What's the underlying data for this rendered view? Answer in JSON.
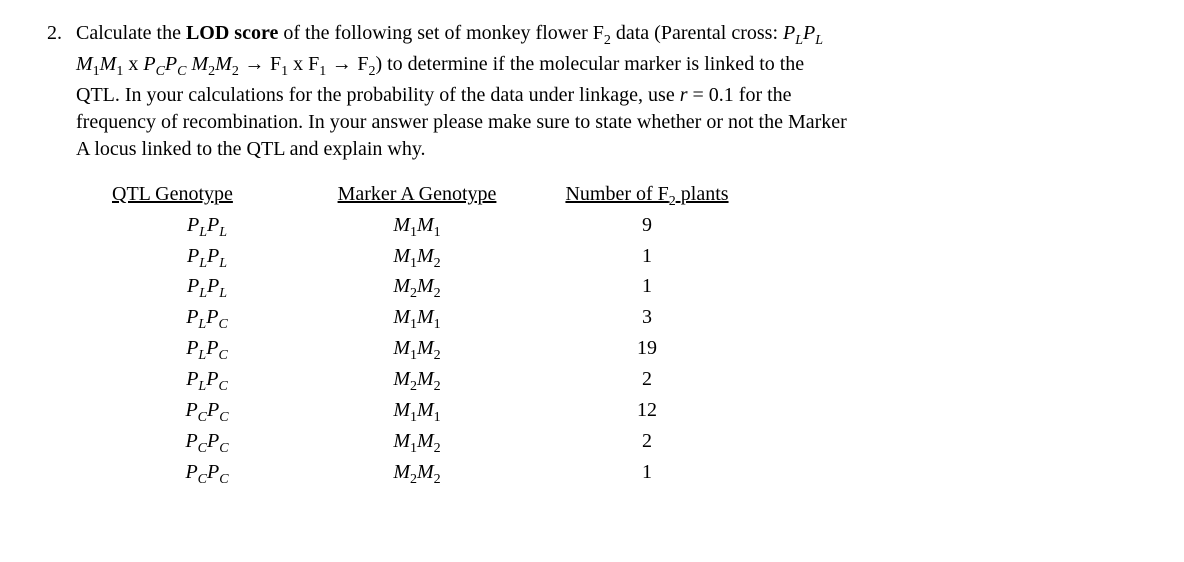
{
  "question_number": "2.",
  "prompt": {
    "line1_a": "Calculate the ",
    "line1_bold": "LOD score",
    "line1_b": " of the following set of monkey flower F",
    "line1_sub1": "2",
    "line1_c": " data (Parental cross: ",
    "cross_p1a": "P",
    "cross_p1a_sub": "L",
    "cross_p1b": "P",
    "cross_p1b_sub": "L",
    "line2_a": "M",
    "line2_a_sub": "1",
    "line2_b": "M",
    "line2_b_sub": "1",
    "line2_x1": " x ",
    "line2_c": "P",
    "line2_c_sub": "C",
    "line2_d": "P",
    "line2_d_sub": "C",
    "line2_e": " M",
    "line2_e_sub": "2",
    "line2_f": "M",
    "line2_f_sub": "2",
    "arrow1": " → ",
    "line2_g": "F",
    "line2_g_sub": "1",
    "line2_x2": " x F",
    "line2_h_sub": "1",
    "arrow2": " → ",
    "line2_i": "F",
    "line2_i_sub": "2",
    "line2_tail": ") to determine if the molecular marker is linked to the",
    "line3": "QTL. In your calculations for the probability of the data under linkage, use ",
    "line3_r": "r",
    "line3_b": " = 0.1 for the",
    "line4": "frequency of recombination. In your answer please make sure to state whether or not the Marker",
    "line5": "A locus linked to the QTL and explain why."
  },
  "headers": {
    "qtl": "QTL Genotype",
    "marker": "Marker A Genotype",
    "count_a": "Number of F",
    "count_sub": "2",
    "count_b": " plants"
  },
  "rows": [
    {
      "qa": "P",
      "qas": "L",
      "qb": "P",
      "qbs": "L",
      "ma": "M",
      "mas": "1",
      "mb": "M",
      "mbs": "1",
      "n": "9"
    },
    {
      "qa": "P",
      "qas": "L",
      "qb": "P",
      "qbs": "L",
      "ma": "M",
      "mas": "1",
      "mb": "M",
      "mbs": "2",
      "n": "1"
    },
    {
      "qa": "P",
      "qas": "L",
      "qb": "P",
      "qbs": "L",
      "ma": "M",
      "mas": "2",
      "mb": "M",
      "mbs": "2",
      "n": "1"
    },
    {
      "qa": "P",
      "qas": "L",
      "qb": "P",
      "qbs": "C",
      "ma": "M",
      "mas": "1",
      "mb": "M",
      "mbs": "1",
      "n": "3"
    },
    {
      "qa": "P",
      "qas": "L",
      "qb": "P",
      "qbs": "C",
      "ma": "M",
      "mas": "1",
      "mb": "M",
      "mbs": "2",
      "n": "19"
    },
    {
      "qa": "P",
      "qas": "L",
      "qb": "P",
      "qbs": "C",
      "ma": "M",
      "mas": "2",
      "mb": "M",
      "mbs": "2",
      "n": "2"
    },
    {
      "qa": "P",
      "qas": "C",
      "qb": "P",
      "qbs": "C",
      "ma": "M",
      "mas": "1",
      "mb": "M",
      "mbs": "1",
      "n": "12"
    },
    {
      "qa": "P",
      "qas": "C",
      "qb": "P",
      "qbs": "C",
      "ma": "M",
      "mas": "1",
      "mb": "M",
      "mbs": "2",
      "n": "2"
    },
    {
      "qa": "P",
      "qas": "C",
      "qb": "P",
      "qbs": "C",
      "ma": "M",
      "mas": "2",
      "mb": "M",
      "mbs": "2",
      "n": "1"
    }
  ]
}
